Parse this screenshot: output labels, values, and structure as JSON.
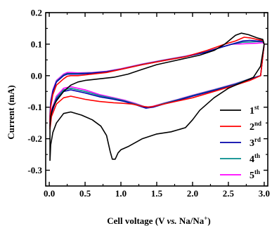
{
  "chart_data": {
    "type": "line",
    "xlabel": {
      "pre": "Cell voltage (V ",
      "vs": "vs.",
      "post": " Na/Na",
      "sup": "+",
      "close": ")"
    },
    "ylabel": "Current (mA)",
    "xlim": [
      -0.05,
      3.05
    ],
    "ylim": [
      -0.35,
      0.2
    ],
    "x_ticks": [
      0.0,
      0.5,
      1.0,
      1.5,
      2.0,
      2.5,
      3.0
    ],
    "x_tick_labels": [
      "0.0",
      "0.5",
      "1.0",
      "1.5",
      "2.0",
      "2.5",
      "3.0"
    ],
    "y_ticks": [
      -0.3,
      -0.2,
      -0.1,
      0.0,
      0.1,
      0.2
    ],
    "y_tick_labels": [
      "-0.3",
      "-0.2",
      "-0.1",
      "0.0",
      "0.1",
      "0.2"
    ],
    "legend_position": "lower-right",
    "series": [
      {
        "name": "1",
        "sup": "st",
        "color": "#000000",
        "points": [
          [
            0.01,
            -0.27
          ],
          [
            0.02,
            -0.22
          ],
          [
            0.05,
            -0.18
          ],
          [
            0.1,
            -0.15
          ],
          [
            0.2,
            -0.12
          ],
          [
            0.3,
            -0.115
          ],
          [
            0.45,
            -0.125
          ],
          [
            0.6,
            -0.14
          ],
          [
            0.72,
            -0.16
          ],
          [
            0.8,
            -0.19
          ],
          [
            0.85,
            -0.24
          ],
          [
            0.88,
            -0.265
          ],
          [
            0.92,
            -0.265
          ],
          [
            0.96,
            -0.245
          ],
          [
            1.0,
            -0.235
          ],
          [
            1.1,
            -0.225
          ],
          [
            1.3,
            -0.2
          ],
          [
            1.5,
            -0.185
          ],
          [
            1.7,
            -0.178
          ],
          [
            1.9,
            -0.165
          ],
          [
            2.0,
            -0.14
          ],
          [
            2.1,
            -0.11
          ],
          [
            2.3,
            -0.07
          ],
          [
            2.5,
            -0.04
          ],
          [
            2.7,
            -0.02
          ],
          [
            2.85,
            -0.005
          ],
          [
            2.95,
            0.03
          ],
          [
            3.0,
            0.1
          ],
          [
            2.98,
            0.115
          ],
          [
            2.9,
            0.12
          ],
          [
            2.78,
            0.13
          ],
          [
            2.68,
            0.135
          ],
          [
            2.6,
            0.128
          ],
          [
            2.45,
            0.1
          ],
          [
            2.3,
            0.08
          ],
          [
            2.1,
            0.065
          ],
          [
            1.9,
            0.055
          ],
          [
            1.7,
            0.045
          ],
          [
            1.5,
            0.035
          ],
          [
            1.3,
            0.02
          ],
          [
            1.1,
            0.005
          ],
          [
            0.9,
            -0.005
          ],
          [
            0.7,
            -0.01
          ],
          [
            0.5,
            -0.015
          ],
          [
            0.4,
            -0.02
          ],
          [
            0.3,
            -0.03
          ],
          [
            0.2,
            -0.05
          ],
          [
            0.1,
            -0.08
          ],
          [
            0.05,
            -0.1
          ],
          [
            0.02,
            -0.13
          ],
          [
            0.01,
            -0.16
          ]
        ]
      },
      {
        "name": "2",
        "sup": "nd",
        "color": "#ff0000",
        "points": [
          [
            0.01,
            -0.17
          ],
          [
            0.03,
            -0.13
          ],
          [
            0.1,
            -0.09
          ],
          [
            0.2,
            -0.07
          ],
          [
            0.3,
            -0.065
          ],
          [
            0.5,
            -0.075
          ],
          [
            0.7,
            -0.082
          ],
          [
            0.9,
            -0.086
          ],
          [
            1.0,
            -0.087
          ],
          [
            1.15,
            -0.09
          ],
          [
            1.3,
            -0.097
          ],
          [
            1.4,
            -0.1
          ],
          [
            1.5,
            -0.095
          ],
          [
            1.7,
            -0.085
          ],
          [
            2.0,
            -0.07
          ],
          [
            2.3,
            -0.05
          ],
          [
            2.6,
            -0.03
          ],
          [
            2.8,
            -0.015
          ],
          [
            2.95,
            0.0
          ],
          [
            3.0,
            0.1
          ],
          [
            2.98,
            0.112
          ],
          [
            2.9,
            0.115
          ],
          [
            2.8,
            0.12
          ],
          [
            2.72,
            0.122
          ],
          [
            2.6,
            0.11
          ],
          [
            2.45,
            0.1
          ],
          [
            2.2,
            0.08
          ],
          [
            1.9,
            0.06
          ],
          [
            1.6,
            0.048
          ],
          [
            1.3,
            0.035
          ],
          [
            1.0,
            0.02
          ],
          [
            0.8,
            0.01
          ],
          [
            0.6,
            0.005
          ],
          [
            0.4,
            0.0
          ],
          [
            0.3,
            0.0
          ],
          [
            0.25,
            -0.002
          ],
          [
            0.2,
            -0.01
          ],
          [
            0.1,
            -0.03
          ],
          [
            0.05,
            -0.06
          ],
          [
            0.02,
            -0.1
          ],
          [
            0.01,
            -0.14
          ]
        ]
      },
      {
        "name": "3",
        "sup": "rd",
        "color": "#0000aa",
        "points": [
          [
            0.01,
            -0.16
          ],
          [
            0.03,
            -0.12
          ],
          [
            0.1,
            -0.075
          ],
          [
            0.2,
            -0.05
          ],
          [
            0.3,
            -0.045
          ],
          [
            0.5,
            -0.055
          ],
          [
            0.7,
            -0.067
          ],
          [
            0.9,
            -0.075
          ],
          [
            1.05,
            -0.082
          ],
          [
            1.2,
            -0.092
          ],
          [
            1.35,
            -0.103
          ],
          [
            1.45,
            -0.1
          ],
          [
            1.6,
            -0.09
          ],
          [
            1.8,
            -0.078
          ],
          [
            2.0,
            -0.065
          ],
          [
            2.3,
            -0.047
          ],
          [
            2.6,
            -0.028
          ],
          [
            2.8,
            -0.012
          ],
          [
            2.95,
            0.0
          ],
          [
            3.0,
            0.1
          ],
          [
            2.98,
            0.11
          ],
          [
            2.9,
            0.11
          ],
          [
            2.8,
            0.112
          ],
          [
            2.7,
            0.11
          ],
          [
            2.55,
            0.1
          ],
          [
            2.4,
            0.09
          ],
          [
            2.2,
            0.075
          ],
          [
            1.9,
            0.06
          ],
          [
            1.6,
            0.048
          ],
          [
            1.3,
            0.035
          ],
          [
            1.0,
            0.02
          ],
          [
            0.8,
            0.012
          ],
          [
            0.6,
            0.008
          ],
          [
            0.4,
            0.005
          ],
          [
            0.3,
            0.005
          ],
          [
            0.25,
            0.005
          ],
          [
            0.2,
            0.0
          ],
          [
            0.1,
            -0.02
          ],
          [
            0.05,
            -0.05
          ],
          [
            0.02,
            -0.09
          ],
          [
            0.01,
            -0.13
          ]
        ]
      },
      {
        "name": "4",
        "sup": "th",
        "color": "#008b8b",
        "points": [
          [
            0.01,
            -0.155
          ],
          [
            0.03,
            -0.115
          ],
          [
            0.1,
            -0.07
          ],
          [
            0.2,
            -0.045
          ],
          [
            0.3,
            -0.04
          ],
          [
            0.5,
            -0.05
          ],
          [
            0.7,
            -0.063
          ],
          [
            0.9,
            -0.072
          ],
          [
            1.05,
            -0.08
          ],
          [
            1.2,
            -0.09
          ],
          [
            1.35,
            -0.1
          ],
          [
            1.45,
            -0.098
          ],
          [
            1.6,
            -0.088
          ],
          [
            1.8,
            -0.076
          ],
          [
            2.0,
            -0.063
          ],
          [
            2.3,
            -0.045
          ],
          [
            2.6,
            -0.026
          ],
          [
            2.8,
            -0.01
          ],
          [
            2.95,
            0.0
          ],
          [
            3.0,
            0.1
          ],
          [
            2.98,
            0.108
          ],
          [
            2.9,
            0.108
          ],
          [
            2.8,
            0.107
          ],
          [
            2.7,
            0.106
          ],
          [
            2.55,
            0.1
          ],
          [
            2.4,
            0.09
          ],
          [
            2.2,
            0.076
          ],
          [
            1.9,
            0.061
          ],
          [
            1.6,
            0.049
          ],
          [
            1.3,
            0.036
          ],
          [
            1.0,
            0.021
          ],
          [
            0.8,
            0.013
          ],
          [
            0.6,
            0.009
          ],
          [
            0.4,
            0.007
          ],
          [
            0.3,
            0.007
          ],
          [
            0.25,
            0.007
          ],
          [
            0.2,
            0.002
          ],
          [
            0.1,
            -0.018
          ],
          [
            0.05,
            -0.048
          ],
          [
            0.02,
            -0.085
          ],
          [
            0.01,
            -0.125
          ]
        ]
      },
      {
        "name": "5",
        "sup": "th",
        "color": "#ff00ff",
        "points": [
          [
            0.01,
            -0.15
          ],
          [
            0.03,
            -0.11
          ],
          [
            0.1,
            -0.065
          ],
          [
            0.2,
            -0.04
          ],
          [
            0.3,
            -0.035
          ],
          [
            0.5,
            -0.045
          ],
          [
            0.7,
            -0.06
          ],
          [
            0.9,
            -0.07
          ],
          [
            1.05,
            -0.078
          ],
          [
            1.2,
            -0.088
          ],
          [
            1.35,
            -0.1
          ],
          [
            1.45,
            -0.097
          ],
          [
            1.6,
            -0.087
          ],
          [
            1.8,
            -0.075
          ],
          [
            2.0,
            -0.062
          ],
          [
            2.3,
            -0.044
          ],
          [
            2.6,
            -0.025
          ],
          [
            2.8,
            -0.01
          ],
          [
            2.95,
            0.0
          ],
          [
            3.0,
            0.1
          ],
          [
            2.98,
            0.105
          ],
          [
            2.9,
            0.103
          ],
          [
            2.8,
            0.102
          ],
          [
            2.7,
            0.101
          ],
          [
            2.55,
            0.1
          ],
          [
            2.4,
            0.09
          ],
          [
            2.2,
            0.077
          ],
          [
            1.9,
            0.062
          ],
          [
            1.6,
            0.05
          ],
          [
            1.3,
            0.037
          ],
          [
            1.0,
            0.022
          ],
          [
            0.8,
            0.014
          ],
          [
            0.6,
            0.01
          ],
          [
            0.4,
            0.009
          ],
          [
            0.3,
            0.01
          ],
          [
            0.25,
            0.01
          ],
          [
            0.2,
            0.005
          ],
          [
            0.1,
            -0.015
          ],
          [
            0.05,
            -0.045
          ],
          [
            0.02,
            -0.08
          ],
          [
            0.01,
            -0.12
          ]
        ]
      }
    ]
  }
}
